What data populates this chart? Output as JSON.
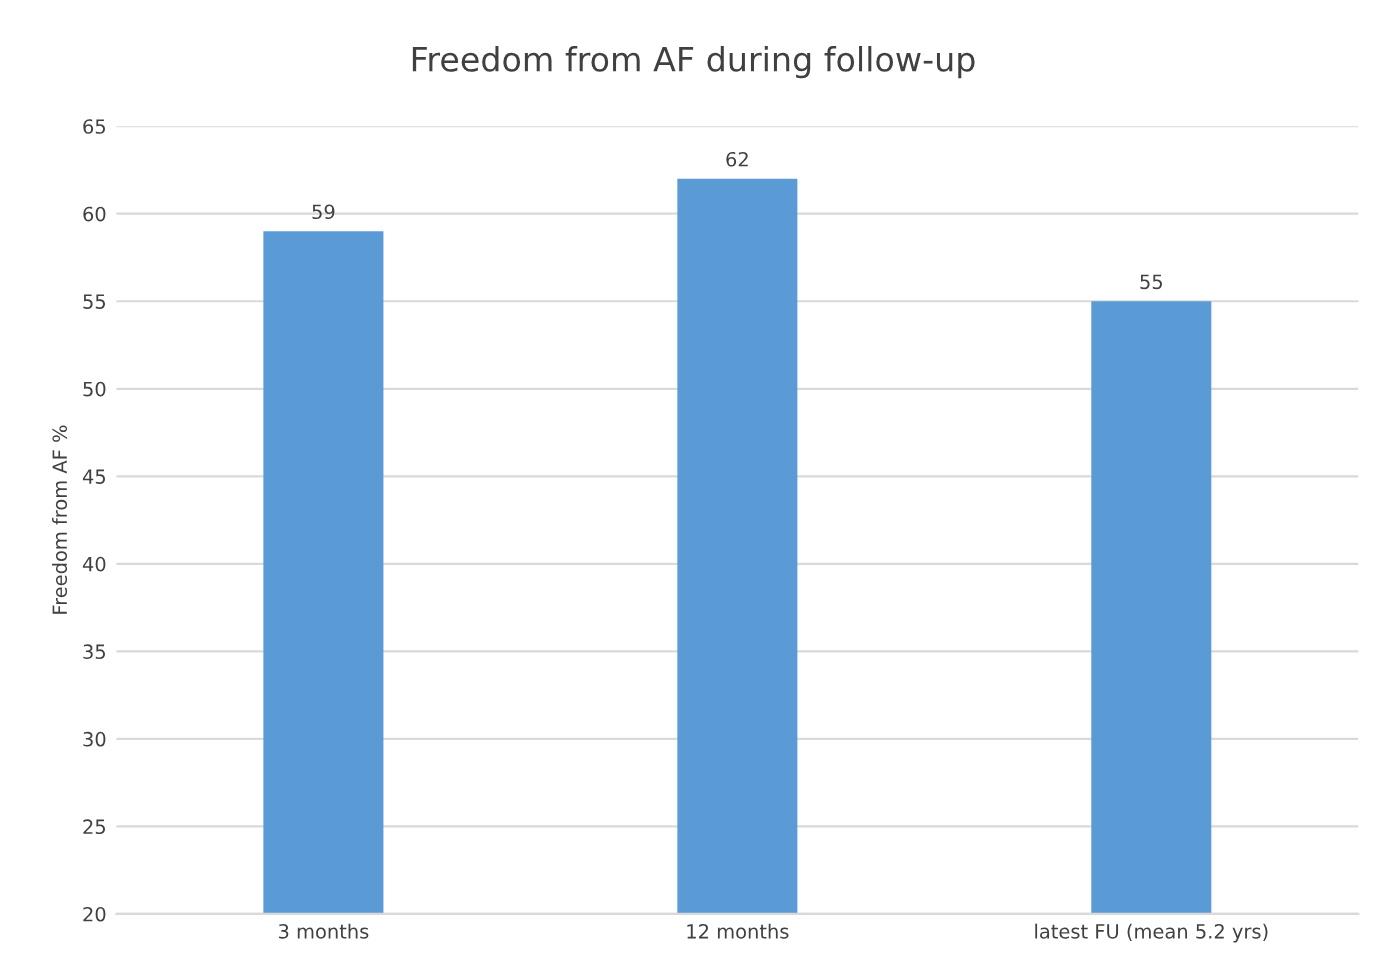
{
  "chart_data": {
    "type": "bar",
    "title": "Freedom from AF during follow-up",
    "ylabel": "Freedom from AF %",
    "categories": [
      "3 months",
      "12 months",
      "latest FU (mean 5.2 yrs)"
    ],
    "values": [
      59,
      62,
      55
    ],
    "color": "#5b9bd5",
    "ylim": [
      20,
      65
    ],
    "yticks": [
      20,
      25,
      30,
      35,
      40,
      45,
      50,
      55,
      60,
      65
    ],
    "grid": "y",
    "data_labels": true
  }
}
